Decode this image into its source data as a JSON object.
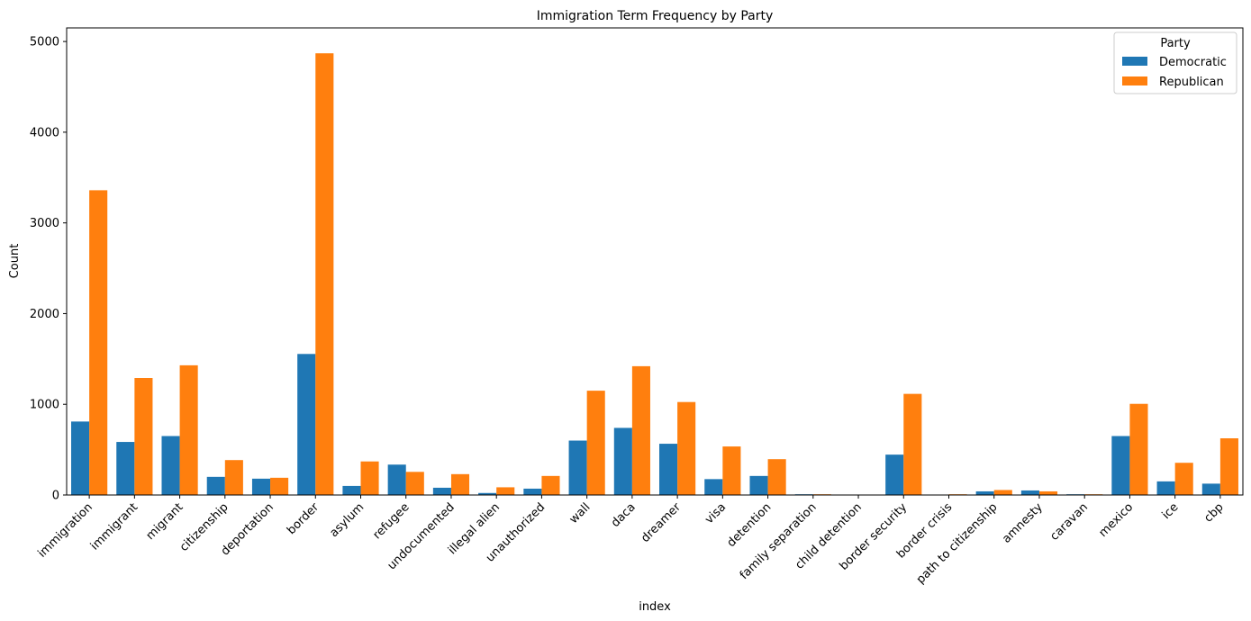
{
  "chart_data": {
    "type": "bar",
    "title": "Immigration Term Frequency by Party",
    "xlabel": "index",
    "ylabel": "Count",
    "ylim": [
      0,
      5150
    ],
    "yticks": [
      0,
      1000,
      2000,
      3000,
      4000,
      5000
    ],
    "grid": false,
    "legend": {
      "title": "Party",
      "placement": "top-right"
    },
    "categories": [
      "immigration",
      "immigrant",
      "migrant",
      "citizenship",
      "deportation",
      "border",
      "asylum",
      "refugee",
      "undocumented",
      "illegal alien",
      "unauthorized",
      "wall",
      "daca",
      "dreamer",
      "visa",
      "detention",
      "family separation",
      "child detention",
      "border security",
      "border crisis",
      "path to citizenship",
      "amnesty",
      "caravan",
      "mexico",
      "ice",
      "cbp"
    ],
    "series": [
      {
        "name": "Democratic",
        "color": "#1f77b4",
        "values": [
          810,
          585,
          650,
          200,
          180,
          1555,
          100,
          335,
          80,
          22,
          70,
          600,
          740,
          565,
          175,
          210,
          8,
          2,
          445,
          2,
          40,
          50,
          8,
          650,
          150,
          125
        ]
      },
      {
        "name": "Republican",
        "color": "#ff7f0e",
        "values": [
          3360,
          1290,
          1430,
          385,
          190,
          4870,
          370,
          255,
          230,
          85,
          210,
          1150,
          1420,
          1025,
          535,
          395,
          8,
          2,
          1115,
          8,
          55,
          40,
          8,
          1005,
          355,
          625
        ]
      }
    ]
  }
}
